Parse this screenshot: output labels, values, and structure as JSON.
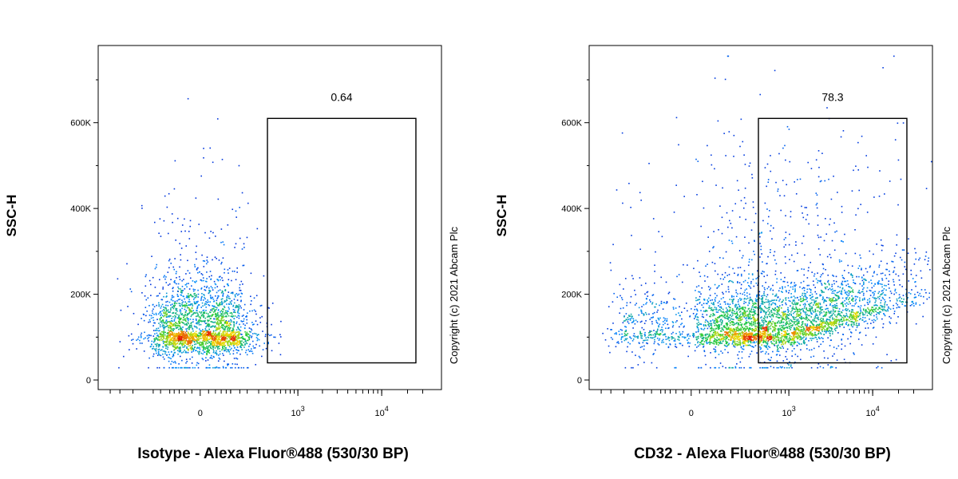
{
  "chart_data": [
    {
      "type": "scatter",
      "density_colored": true,
      "xlabel": "Isotype - Alexa Fluor®488 (530/30 BP)",
      "ylabel": "SSC-H",
      "x_scale": "biexponential",
      "x_ticks": [
        {
          "value": 0,
          "label": "0",
          "sup": ""
        },
        {
          "value": 1000,
          "label": "10",
          "sup": "3"
        },
        {
          "value": 10000,
          "label": "10",
          "sup": "4"
        }
      ],
      "y_ticks": [
        {
          "value": 0,
          "label": "0"
        },
        {
          "value": 200000,
          "label": "200K"
        },
        {
          "value": 400000,
          "label": "400K"
        },
        {
          "value": 600000,
          "label": "600K"
        }
      ],
      "ylim": [
        0,
        780000
      ],
      "gate": {
        "label": "0.64",
        "x_min": 400,
        "x_max": 25000,
        "y_min": 40000,
        "y_max": 610000
      },
      "population": {
        "n": 2600,
        "center_x": 0,
        "center_y": 110000,
        "spread_x": 150,
        "spread_y": 90000
      },
      "copyright": "Copyright (c) 2021 Abcam Plc"
    },
    {
      "type": "scatter",
      "density_colored": true,
      "xlabel": "CD32 - Alexa Fluor®488 (530/30 BP)",
      "ylabel": "SSC-H",
      "x_scale": "biexponential",
      "x_ticks": [
        {
          "value": 0,
          "label": "0",
          "sup": ""
        },
        {
          "value": 1000,
          "label": "10",
          "sup": "3"
        },
        {
          "value": 10000,
          "label": "10",
          "sup": "4"
        }
      ],
      "y_ticks": [
        {
          "value": 0,
          "label": "0"
        },
        {
          "value": 200000,
          "label": "200K"
        },
        {
          "value": 400000,
          "label": "400K"
        },
        {
          "value": 600000,
          "label": "600K"
        }
      ],
      "ylim": [
        0,
        780000
      ],
      "gate": {
        "label": "78.3",
        "x_min": 400,
        "x_max": 25000,
        "y_min": 40000,
        "y_max": 610000
      },
      "population": {
        "n": 4200,
        "center_x": 1000,
        "center_y": 110000,
        "spread_x": 4000,
        "spread_y": 110000
      },
      "copyright": "Copyright (c) 2021 Abcam Plc"
    }
  ]
}
